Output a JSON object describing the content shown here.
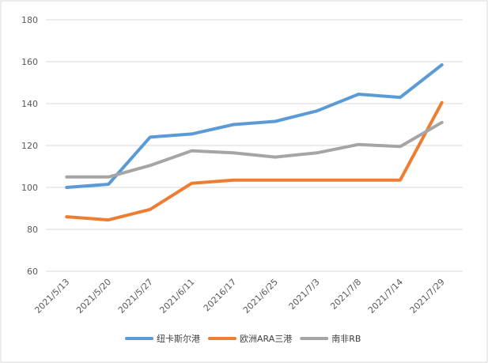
{
  "chart_data": {
    "type": "line",
    "categories": [
      "2021/5/13",
      "2021/5/20",
      "2021/5/27",
      "2021/6/11",
      "20216/17",
      "2021/6/25",
      "2021/7/3",
      "2021/7/8",
      "2021/7/14",
      "2021/7/29"
    ],
    "series": [
      {
        "name": "纽卡斯尔港",
        "color": "#5B9BD5",
        "values": [
          100,
          101.5,
          124,
          125.5,
          130,
          131.5,
          136.5,
          144.5,
          143,
          158.5
        ]
      },
      {
        "name": "欧洲ARA三港",
        "color": "#ED7D31",
        "values": [
          86,
          84.5,
          89.5,
          102,
          103.5,
          103.5,
          103.5,
          103.5,
          103.5,
          140.5
        ]
      },
      {
        "name": "南非RB",
        "color": "#A5A5A5",
        "values": [
          105,
          105,
          110.5,
          117.5,
          116.5,
          114.5,
          116.5,
          120.5,
          119.5,
          131
        ]
      }
    ],
    "ylim": [
      60,
      180
    ],
    "yticks": [
      60,
      80,
      100,
      120,
      140,
      160,
      180
    ],
    "grid": true,
    "legend": "bottom"
  }
}
